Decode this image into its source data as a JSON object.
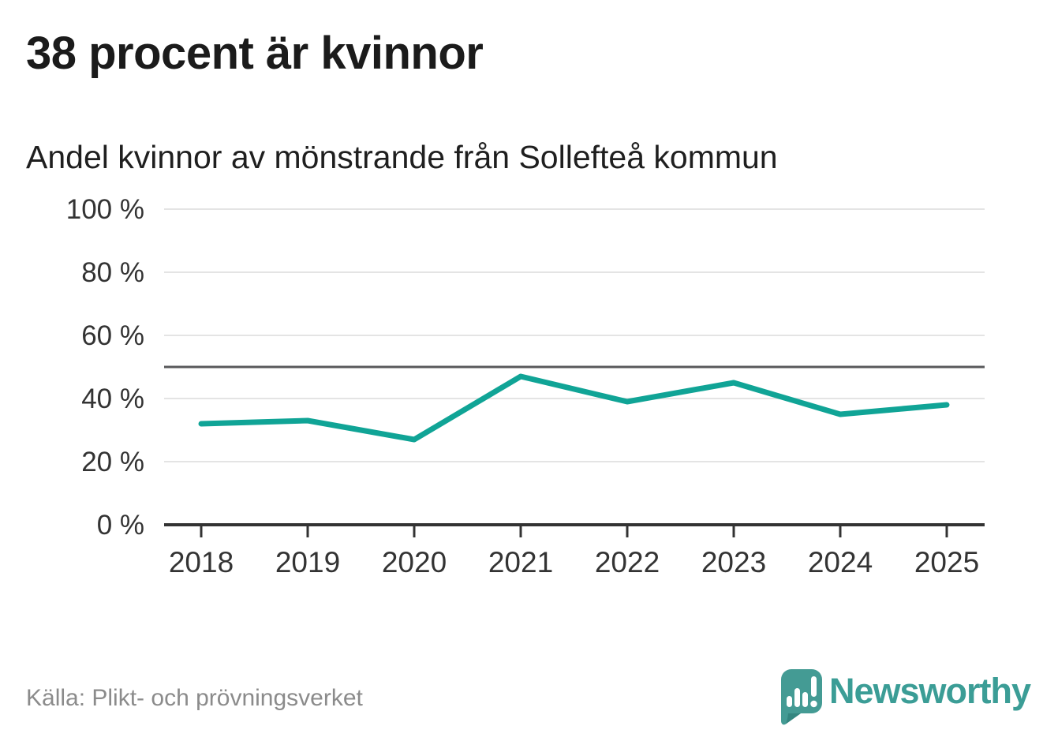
{
  "header": {
    "title": "38 procent är kvinnor",
    "subtitle": "Andel kvinnor av mönstrande från Sollefteå kommun"
  },
  "chart_data": {
    "type": "line",
    "title": "38 procent är kvinnor",
    "subtitle": "Andel kvinnor av mönstrande från Sollefteå kommun",
    "categories": [
      "2018",
      "2019",
      "2020",
      "2021",
      "2022",
      "2023",
      "2024",
      "2025"
    ],
    "series": [
      {
        "name": "Andel kvinnor av mönstrande",
        "values": [
          32,
          33,
          27,
          47,
          39,
          45,
          35,
          38
        ]
      }
    ],
    "unit": "%",
    "ylim": [
      0,
      100
    ],
    "yticks": [
      0,
      20,
      40,
      60,
      80,
      100
    ],
    "ytick_label_suffix": " %",
    "reference_line_value": 50,
    "grid": "horizontal-only",
    "legend_position": "none",
    "colors": {
      "line": "#10a496",
      "grid": "#e4e4e4",
      "reference_line": "#58595b",
      "axis": "#333333",
      "tick_labels": "#333333"
    }
  },
  "footer": {
    "source": "Källa: Plikt- och prövningsverket",
    "brand": "Newsworthy",
    "brand_color": "#3b9d96"
  }
}
